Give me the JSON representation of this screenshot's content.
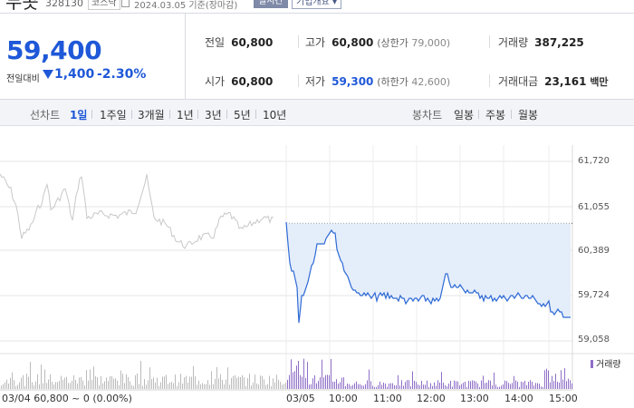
{
  "header": {
    "title": "두콧",
    "code": "328130",
    "market": "코스닥",
    "date": "2024.03.05 기준(장마감)",
    "realtime_label": "실시간",
    "company_info_label": "기업개요 ▾"
  },
  "price": {
    "current": "59,400",
    "change_label": "전일대비",
    "change_value": "1,400",
    "change_pct": "-2.30%"
  },
  "stats": {
    "prev_close": {
      "label": "전일",
      "value": "60,800"
    },
    "open": {
      "label": "시가",
      "value": "60,800"
    },
    "high": {
      "label": "고가",
      "value": "60,800",
      "sub_label": "(상한가",
      "sub_value": "79,000)"
    },
    "low": {
      "label": "저가",
      "value": "59,300",
      "sub_label": "(하한가",
      "sub_value": "42,600)"
    },
    "volume": {
      "label": "거래량",
      "value": "387,225"
    },
    "amount": {
      "label": "거래대금",
      "value": "23,161",
      "unit": "백만"
    }
  },
  "period_bar": {
    "line_label": "선차트",
    "line_options": [
      "1일",
      "1주일",
      "3개월",
      "1년",
      "3년",
      "5년",
      "10년"
    ],
    "active_option": "1일",
    "candle_label": "봉차트",
    "candle_options": [
      "일봉",
      "주봉",
      "월봉"
    ]
  },
  "chart_data": {
    "type": "line",
    "y_ticks": [
      "61,720",
      "61,055",
      "60,389",
      "59,724",
      "59,058"
    ],
    "ylim": [
      59058,
      61720
    ],
    "x_ticks": [
      "03/05",
      "10:00",
      "11:00",
      "12:00",
      "13:00",
      "14:00",
      "15:00"
    ],
    "prev_day_label": "03/04  60,800 ~ 0 (0.00%)",
    "volume_legend": "거래량",
    "reference_price": 60800,
    "colors": {
      "prev_day": "#c8c8c8",
      "today": "#2f6bd5",
      "fill": "#e4edfa",
      "volume": "#8f6fc7"
    }
  }
}
